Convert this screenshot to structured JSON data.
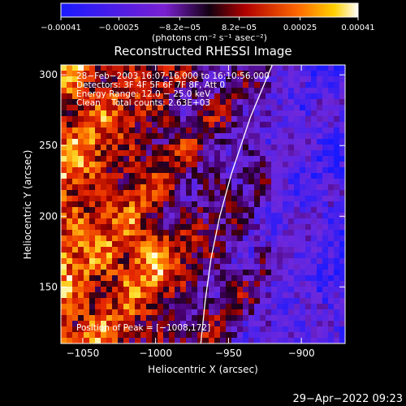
{
  "chart_data": {
    "type": "heatmap",
    "title": "Reconstructed RHESSI Image",
    "xlabel": "Heliocentric X (arcsec)",
    "ylabel": "Heliocentric Y (arcsec)",
    "xlim": [
      -1065,
      -870
    ],
    "ylim": [
      110,
      307
    ],
    "x_ticks": [
      -1050,
      -1000,
      -950,
      -900
    ],
    "x_tick_labels": [
      "−1050",
      "−1000",
      "−950",
      "−900"
    ],
    "y_ticks": [
      150,
      200,
      250,
      300
    ],
    "y_tick_labels": [
      "150",
      "200",
      "250",
      "300"
    ],
    "colorbar": {
      "range": [
        -0.00041,
        0.00041
      ],
      "ticks": [
        -0.00041,
        -0.00025,
        -8.2e-05,
        8.2e-05,
        0.00025,
        0.00041
      ],
      "tick_labels": [
        "−0.00041",
        "−0.00025",
        "−8.2e−05",
        "8.2e−05",
        "0.00025",
        "0.00041"
      ],
      "unit_text": "(photons cm⁻² s⁻¹ asec⁻²)"
    },
    "annotations": [
      "28−Feb−2003 16:07:16.000 to 16:10:56.000",
      "Detectors: 3F 4F 5F 6F 7F 8F, Att 0",
      "Energy Range: 12.0 − 25.0 keV",
      "Clean    Total counts: 2.63E+03"
    ],
    "peak_label": "Position of Peak = [−1008,172]",
    "peak": [
      -1008,
      172
    ],
    "limb_curve": [
      [
        -920,
        307
      ],
      [
        -935,
        270
      ],
      [
        -948,
        230
      ],
      [
        -956,
        200
      ],
      [
        -962,
        170
      ],
      [
        -966,
        140
      ],
      [
        -969,
        110
      ]
    ]
  },
  "footer_timestamp": "29−Apr−2022 09:23"
}
